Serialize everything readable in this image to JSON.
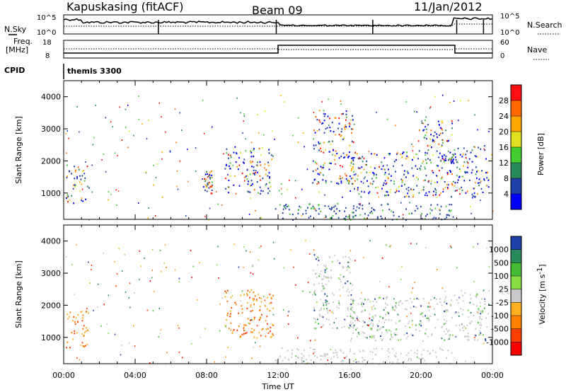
{
  "header": {
    "station": "Kapuskasing (fitACF)",
    "beam": "Beam 09",
    "date": "11/Jan/2012"
  },
  "strip": {
    "nsky_label": "N.Sky",
    "nsearch_label": "N.Search",
    "count_ticks_left": [
      "10^5",
      "10^0"
    ],
    "count_ticks_right": [
      "10^5",
      "10^0"
    ],
    "freq_label_1": "Freq.",
    "freq_label_2": "[MHz]",
    "freq_ticks": [
      "18",
      "8"
    ],
    "nave_label": "Nave",
    "nave_ticks": [
      "60",
      "0"
    ],
    "cpid_label": "CPID",
    "cpid_value": "themis 3300"
  },
  "axes": {
    "ylabel": "Slant Range [km]",
    "yticks": [
      "4000",
      "3000",
      "2000",
      "1000"
    ],
    "xlabel": "Time UT",
    "xticks": [
      "00:00",
      "04:00",
      "08:00",
      "12:00",
      "16:00",
      "20:00",
      "00:00"
    ]
  },
  "chart_data": [
    {
      "type": "heatmap",
      "name": "power",
      "ylabel": "Slant Range [km]",
      "xlabel": "Time UT",
      "ylim": [
        180,
        4500
      ],
      "xlim_hours": [
        0,
        24
      ],
      "colorbar_label": "Power [dB]",
      "colorbar_ticks": [
        "28",
        "24",
        "20",
        "16",
        "12",
        "8",
        "4"
      ],
      "colorbar_colors": [
        "#ff1010",
        "#ff6a00",
        "#ffa500",
        "#e0e020",
        "#44cc33",
        "#2a8a5a",
        "#1e3faa",
        "#0000ff"
      ],
      "echo_regions_hours_km": [
        {
          "t0": 0.1,
          "t1": 1.4,
          "r0": 700,
          "r1": 1900
        },
        {
          "t0": 7.8,
          "t1": 8.3,
          "r0": 1000,
          "r1": 1700
        },
        {
          "t0": 9.0,
          "t1": 11.7,
          "r0": 1000,
          "r1": 2500
        },
        {
          "t0": 13.9,
          "t1": 16.2,
          "r0": 1300,
          "r1": 3600
        },
        {
          "t0": 16.0,
          "t1": 21.8,
          "r0": 900,
          "r1": 2300
        },
        {
          "t0": 19.8,
          "t1": 21.8,
          "r0": 2000,
          "r1": 3300
        },
        {
          "t0": 21.8,
          "t1": 23.8,
          "r0": 900,
          "r1": 2500
        },
        {
          "t0": 11.8,
          "t1": 21.8,
          "r0": 180,
          "r1": 700
        }
      ]
    },
    {
      "type": "heatmap",
      "name": "velocity",
      "ylabel": "Slant Range [km]",
      "xlabel": "Time UT",
      "ylim": [
        180,
        4500
      ],
      "xlim_hours": [
        0,
        24
      ],
      "colorbar_label": "Velocity [m s^-1]",
      "colorbar_ticks": [
        "1000",
        "500",
        "100",
        "25",
        "-25",
        "-100",
        "-500",
        "-1000"
      ],
      "colorbar_colors": [
        "#1e3faa",
        "#2a8a5a",
        "#44bb33",
        "#88dd44",
        "#c8c8c8",
        "#ffb020",
        "#ff8000",
        "#ff4000",
        "#ff0000"
      ],
      "echo_regions_hours_km": [
        {
          "t0": 0.1,
          "t1": 1.4,
          "r0": 700,
          "r1": 1900
        },
        {
          "t0": 9.0,
          "t1": 11.7,
          "r0": 1000,
          "r1": 2500
        },
        {
          "t0": 13.9,
          "t1": 16.2,
          "r0": 1300,
          "r1": 3600
        },
        {
          "t0": 16.0,
          "t1": 21.8,
          "r0": 900,
          "r1": 2300
        },
        {
          "t0": 21.8,
          "t1": 23.8,
          "r0": 900,
          "r1": 2500
        },
        {
          "t0": 11.8,
          "t1": 21.8,
          "r0": 180,
          "r1": 700
        }
      ]
    }
  ]
}
